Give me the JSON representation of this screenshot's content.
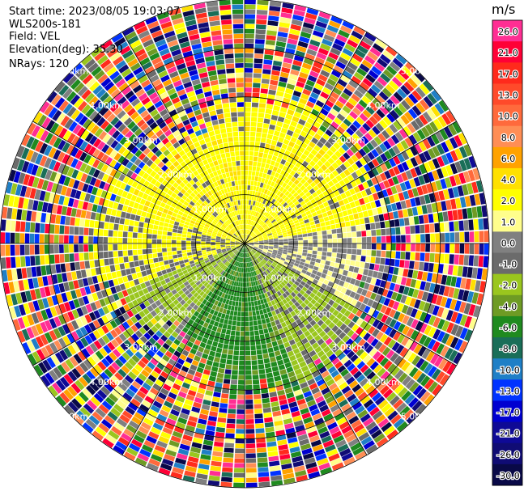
{
  "header": {
    "start_time": "Start time: 2023/08/05 19:03:07",
    "instrument": "WLS200s-181",
    "field": "Field: VEL",
    "elevation": "Elevation(deg): 35.30",
    "nrays": "NRays: 120"
  },
  "colorbar": {
    "unit": "m/s",
    "levels": [
      {
        "label": "26.0",
        "color": "#ff2e93"
      },
      {
        "label": "21.0",
        "color": "#ff0036"
      },
      {
        "label": "17.0",
        "color": "#ff2a1c"
      },
      {
        "label": "13.0",
        "color": "#ff4a2a"
      },
      {
        "label": "10.0",
        "color": "#ff6a3c"
      },
      {
        "label": "8.0",
        "color": "#ff8e55"
      },
      {
        "label": "6.0",
        "color": "#ffa200"
      },
      {
        "label": "4.0",
        "color": "#ffe000"
      },
      {
        "label": "2.0",
        "color": "#ffff00"
      },
      {
        "label": "1.0",
        "color": "#fffe8c"
      },
      {
        "label": "0.0",
        "color": "#808080"
      },
      {
        "label": "-1.0",
        "color": "#6b6b6b"
      },
      {
        "label": "-2.0",
        "color": "#9ac61e"
      },
      {
        "label": "-4.0",
        "color": "#6e9b24"
      },
      {
        "label": "-6.0",
        "color": "#1f8a1f"
      },
      {
        "label": "-8.0",
        "color": "#1a6e58"
      },
      {
        "label": "-10.0",
        "color": "#1f7fc6"
      },
      {
        "label": "-13.0",
        "color": "#0033ff"
      },
      {
        "label": "-17.0",
        "color": "#0000d0"
      },
      {
        "label": "-21.0",
        "color": "#0f0a96"
      },
      {
        "label": "-26.0",
        "color": "#100c74"
      },
      {
        "label": "-30.0",
        "color": "#090947"
      }
    ]
  },
  "chart_data": {
    "type": "ppi",
    "field": "VEL",
    "nrays": 120,
    "ring_labels": [
      "1.00km",
      "2.00km",
      "3.00km",
      "4.00km",
      "5.00km"
    ],
    "ring_km": [
      1,
      2,
      3,
      4,
      5
    ],
    "max_range_km": 5.0,
    "spoke_angles_deg": [
      0,
      30,
      60,
      90,
      120,
      150,
      180,
      210,
      240,
      270,
      300,
      330
    ],
    "velocity_pattern": [
      {
        "region": "near, north half",
        "value_ms": 2.0
      },
      {
        "region": "near, east",
        "value_ms": 0.0
      },
      {
        "region": "near, south-west",
        "value_ms": -2.0
      },
      {
        "region": "near, south",
        "value_ms": -6.0
      },
      {
        "region": "far range",
        "value_ms": "noise (all colours)"
      }
    ]
  }
}
